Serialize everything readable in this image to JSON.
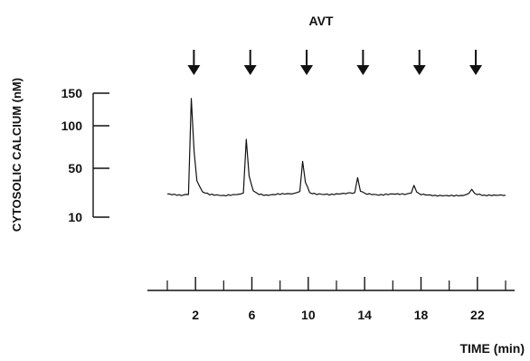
{
  "chart_data": {
    "type": "line",
    "title": "",
    "annotation": "AVT",
    "ylabel": "CYTOSOLIC CALCIUM (nM)",
    "xlabel": "TIME (min)",
    "y_ticks": [
      10,
      50,
      100,
      150
    ],
    "x_tick_labels": [
      2,
      6,
      10,
      14,
      18,
      22
    ],
    "x_minor_ticks": [
      0,
      4,
      8,
      12,
      16,
      20,
      24
    ],
    "xlim": [
      -0.5,
      24
    ],
    "stimulus_times": [
      1.5,
      5.5,
      9.5,
      13.5,
      17.5,
      21.5
    ],
    "baseline": 28,
    "series": [
      {
        "x": [
          0,
          1.0,
          1.5,
          1.7,
          1.9,
          2.1,
          2.5,
          3.0,
          4.0,
          5.0,
          5.4,
          5.6,
          5.8,
          6.1,
          6.5,
          7.0,
          8.0,
          9.0,
          9.4,
          9.6,
          9.8,
          10.1,
          10.6,
          11.5,
          12.5,
          13.3,
          13.5,
          13.7,
          14.0,
          15.0,
          16.0,
          17.0,
          17.3,
          17.5,
          17.7,
          18.0,
          19.0,
          20.0,
          21.0,
          21.4,
          21.6,
          21.8,
          22.5,
          23.5,
          24.0
        ],
        "y": [
          29,
          28,
          29,
          142,
          70,
          40,
          31,
          29,
          28,
          29,
          30,
          84,
          44,
          31,
          29,
          28,
          29,
          29,
          31,
          58,
          38,
          30,
          29,
          28,
          29,
          30,
          42,
          31,
          29,
          28,
          29,
          29,
          30,
          36,
          30,
          29,
          28,
          28,
          28,
          29,
          32,
          29,
          28,
          28,
          28
        ]
      }
    ]
  }
}
